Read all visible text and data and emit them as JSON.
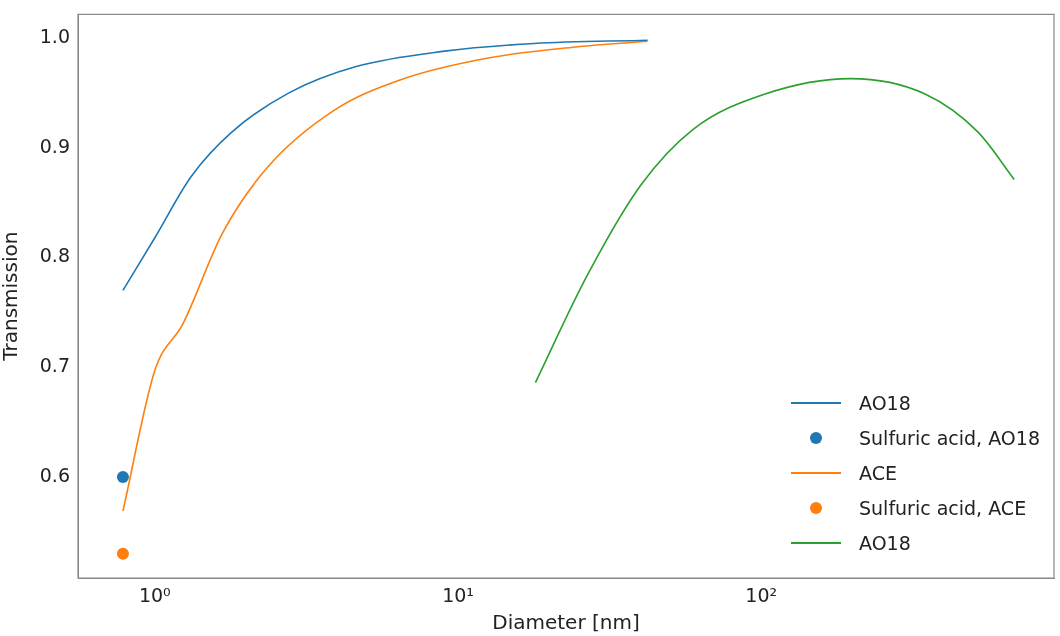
{
  "chart_data": {
    "type": "line",
    "xlabel": "Diameter [nm]",
    "ylabel": "Transmission",
    "log": "x",
    "xlim": [
      0.558,
      924
    ],
    "xticks": [
      {
        "value": 1,
        "label": "10⁰"
      },
      {
        "value": 10,
        "label": "10¹"
      },
      {
        "value": 100,
        "label": "10²"
      }
    ],
    "ylim": [
      0.508,
      1.0215
    ],
    "yticks": [
      {
        "value": 0.6,
        "label": "0.6"
      },
      {
        "value": 0.7,
        "label": "0.7"
      },
      {
        "value": 0.8,
        "label": "0.8"
      },
      {
        "value": 0.9,
        "label": "0.9"
      },
      {
        "value": 1.0,
        "label": "1.0"
      }
    ],
    "grid": false,
    "legend": "bottom right",
    "series": [
      {
        "name": "AO18",
        "color": "#1f77b4",
        "marker": "none",
        "x": [
          0.785,
          1.0,
          1.32,
          1.79,
          2.77,
          4.61,
          9.03,
          17.8,
          42.2
        ],
        "values": [
          0.77,
          0.818,
          0.874,
          0.914,
          0.95,
          0.974,
          0.988,
          0.995,
          0.998
        ]
      },
      {
        "name": "Sulfuric acid, AO18",
        "type": "scatter",
        "color": "#1f77b4",
        "marker": "circle",
        "x": [
          0.785
        ],
        "values": [
          0.6
        ]
      },
      {
        "name": "ACE",
        "color": "#ff7f0e",
        "marker": "none",
        "x": [
          0.785,
          1.0,
          1.24,
          1.67,
          2.35,
          3.9,
          6.47,
          12.7,
          24.9,
          42.2
        ],
        "values": [
          0.569,
          0.697,
          0.74,
          0.822,
          0.882,
          0.934,
          0.962,
          0.982,
          0.992,
          0.997
        ]
      },
      {
        "name": "Sulfuric acid, ACE",
        "type": "scatter",
        "color": "#ff7f0e",
        "marker": "circle",
        "x": [
          0.785
        ],
        "values": [
          0.53
        ]
      },
      {
        "name": "AO18",
        "color": "#2ca02c",
        "marker": "none",
        "x": [
          18.0,
          26.6,
          40.1,
          59.8,
          103,
          197,
          347,
          520,
          683
        ],
        "values": [
          0.686,
          0.783,
          0.866,
          0.917,
          0.949,
          0.963,
          0.949,
          0.914,
          0.871
        ]
      }
    ]
  }
}
